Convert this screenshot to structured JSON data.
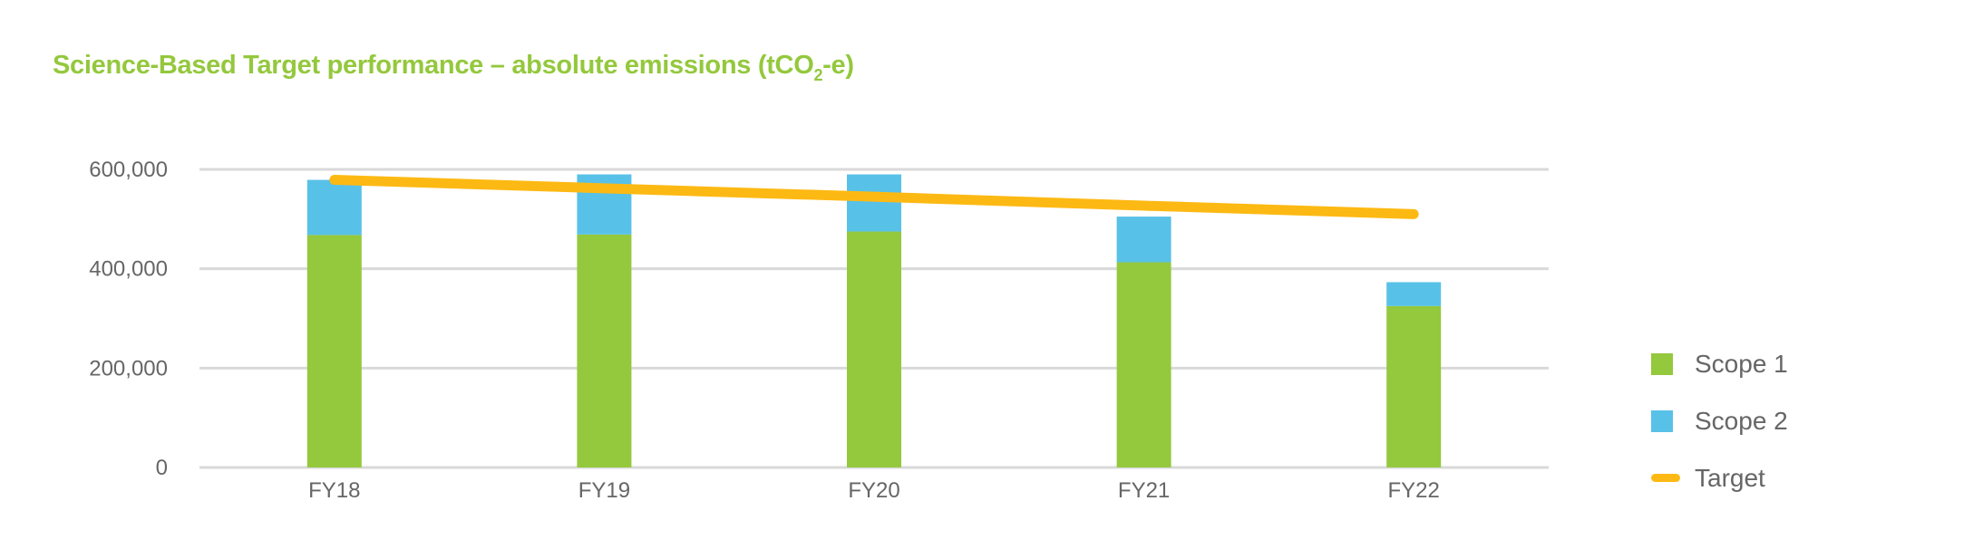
{
  "title": {
    "main": "Science-Based Target performance – absolute emissions (tCO",
    "sub": "2",
    "end": "-e)"
  },
  "colors": {
    "scope1": "#94c83d",
    "scope2": "#58c1e8",
    "target": "#fdb913",
    "grid": "#d9d9d9",
    "title": "#94c83d"
  },
  "chart_data": {
    "type": "bar",
    "stacked": true,
    "title": "Science-Based Target performance – absolute emissions (tCO2-e)",
    "categories": [
      "FY18",
      "FY19",
      "FY20",
      "FY21",
      "FY22"
    ],
    "series": [
      {
        "name": "Scope 1",
        "type": "bar",
        "values": [
          468000,
          469000,
          475000,
          413000,
          325000
        ]
      },
      {
        "name": "Scope 2",
        "type": "bar",
        "values": [
          111000,
          121000,
          115000,
          92000,
          48000
        ]
      },
      {
        "name": "Target",
        "type": "line",
        "values": [
          579000,
          562000,
          545000,
          527000,
          510000
        ]
      }
    ],
    "ylim": [
      0,
      600000
    ],
    "yticks": [
      "0",
      "200,000",
      "400,000",
      "600,000"
    ],
    "ytick_values": [
      0,
      200000,
      400000,
      600000
    ],
    "grid": true,
    "legend": "right"
  }
}
